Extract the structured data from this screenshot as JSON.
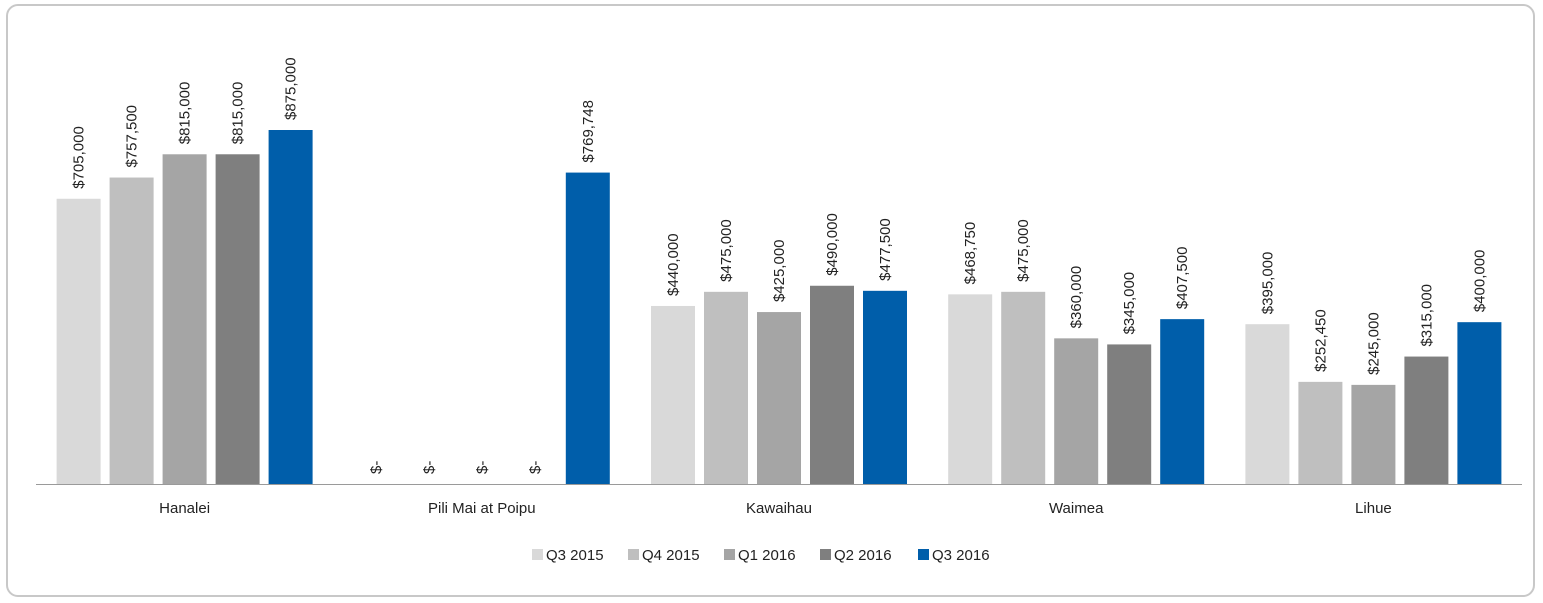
{
  "chart_data": {
    "type": "bar",
    "categories": [
      "Hanalei",
      "Pili Mai at Poipu",
      "Kawaihau",
      "Waimea",
      "Lihue"
    ],
    "series": [
      {
        "name": "Q3 2015",
        "color": "#d9d9d9",
        "values": [
          705000,
          0,
          440000,
          468750,
          395000
        ],
        "labels": [
          "$705,000",
          "$-",
          "$440,000",
          "$468,750",
          "$395,000"
        ]
      },
      {
        "name": "Q4 2015",
        "color": "#bfbfbf",
        "values": [
          757500,
          0,
          475000,
          475000,
          252450
        ],
        "labels": [
          "$757,500",
          "$-",
          "$475,000",
          "$475,000",
          "$252,450"
        ]
      },
      {
        "name": "Q1 2016",
        "color": "#a5a5a5",
        "values": [
          815000,
          0,
          425000,
          360000,
          245000
        ],
        "labels": [
          "$815,000",
          "$-",
          "$425,000",
          "$360,000",
          "$245,000"
        ]
      },
      {
        "name": "Q2 2016",
        "color": "#7f7f7f",
        "values": [
          815000,
          0,
          490000,
          345000,
          315000
        ],
        "labels": [
          "$815,000",
          "$-",
          "$490,000",
          "$345,000",
          "$315,000"
        ]
      },
      {
        "name": "Q3 2016",
        "color": "#005eaa",
        "values": [
          875000,
          769748,
          477500,
          407500,
          400000
        ],
        "labels": [
          "$875,000",
          "$769,748",
          "$477,500",
          "$407,500",
          "$400,000"
        ]
      }
    ],
    "ylim": [
      0,
      1000000
    ],
    "grid": false,
    "legend_position": "bottom"
  }
}
